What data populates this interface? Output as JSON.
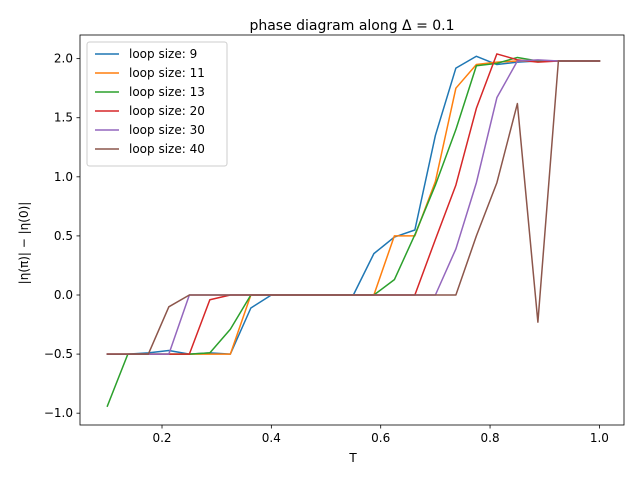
{
  "chart_data": {
    "type": "line",
    "title": "phase diagram along Δ = 0.1",
    "xlabel": "T",
    "ylabel": "|η(π)| − |η(0)|",
    "xlim": [
      0.05,
      1.045
    ],
    "ylim": [
      -1.1,
      2.2
    ],
    "xticks": [
      0.2,
      0.4,
      0.6,
      0.8,
      1.0
    ],
    "xtick_labels": [
      "0.2",
      "0.4",
      "0.6",
      "0.8",
      "1.0"
    ],
    "yticks": [
      -1.0,
      -0.5,
      0.0,
      0.5,
      1.0,
      1.5,
      2.0
    ],
    "ytick_labels": [
      "−1.0",
      "−0.5",
      "0.0",
      "0.5",
      "1.0",
      "1.5",
      "2.0"
    ],
    "grid": false,
    "legend_position": "top-left",
    "x": [
      0.1,
      0.1375,
      0.175,
      0.2125,
      0.25,
      0.2875,
      0.325,
      0.3625,
      0.4,
      0.4375,
      0.475,
      0.5125,
      0.55,
      0.5875,
      0.625,
      0.6625,
      0.7,
      0.7375,
      0.775,
      0.8125,
      0.85,
      0.8875,
      0.925,
      1.0
    ],
    "series": [
      {
        "name": "loop size: 9",
        "color": "#1f77b4",
        "values": [
          -0.5,
          -0.5,
          -0.49,
          -0.47,
          -0.5,
          -0.49,
          -0.5,
          -0.11,
          0.0,
          0.0,
          0.0,
          0.0,
          0.0,
          0.35,
          0.49,
          0.55,
          1.35,
          1.92,
          2.02,
          1.95,
          1.97,
          1.98,
          1.98,
          1.98
        ]
      },
      {
        "name": "loop size: 11",
        "color": "#ff7f0e",
        "values": [
          -0.5,
          -0.5,
          -0.5,
          -0.5,
          -0.5,
          -0.5,
          -0.5,
          0.0,
          0.0,
          0.0,
          0.0,
          0.0,
          0.0,
          0.0,
          0.5,
          0.5,
          0.96,
          1.75,
          1.95,
          1.97,
          1.98,
          1.98,
          1.98,
          1.98
        ]
      },
      {
        "name": "loop size: 13",
        "color": "#2ca02c",
        "values": [
          -0.94,
          -0.5,
          -0.5,
          -0.5,
          -0.5,
          -0.49,
          -0.29,
          0.0,
          0.0,
          0.0,
          0.0,
          0.0,
          0.0,
          0.0,
          0.13,
          0.51,
          0.93,
          1.4,
          1.94,
          1.96,
          2.01,
          1.98,
          1.98,
          1.98
        ]
      },
      {
        "name": "loop size: 20",
        "color": "#d62728",
        "values": [
          -0.5,
          -0.5,
          -0.5,
          -0.5,
          -0.5,
          -0.04,
          0.0,
          0.0,
          0.0,
          0.0,
          0.0,
          0.0,
          0.0,
          0.0,
          0.0,
          0.0,
          0.47,
          0.93,
          1.58,
          2.04,
          1.99,
          1.97,
          1.98,
          1.98
        ]
      },
      {
        "name": "loop size: 30",
        "color": "#9467bd",
        "values": [
          -0.5,
          -0.5,
          -0.5,
          -0.5,
          0.0,
          0.0,
          0.0,
          0.0,
          0.0,
          0.0,
          0.0,
          0.0,
          0.0,
          0.0,
          0.0,
          0.0,
          0.0,
          0.39,
          0.95,
          1.67,
          1.98,
          1.99,
          1.98,
          1.98
        ]
      },
      {
        "name": "loop size: 40",
        "color": "#8c564b",
        "values": [
          -0.5,
          -0.5,
          -0.5,
          -0.1,
          0.0,
          0.0,
          0.0,
          0.0,
          0.0,
          0.0,
          0.0,
          0.0,
          0.0,
          0.0,
          0.0,
          0.0,
          0.0,
          0.0,
          0.5,
          0.95,
          1.62,
          -0.23,
          1.98,
          1.98
        ]
      }
    ]
  }
}
